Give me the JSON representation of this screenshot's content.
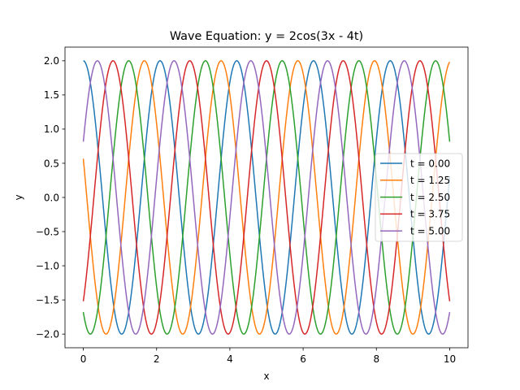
{
  "chart_data": {
    "type": "line",
    "title": "Wave Equation: y = 2cos(3x - 4t)",
    "xlabel": "x",
    "ylabel": "y",
    "xlim": [
      -0.5,
      10.5
    ],
    "ylim": [
      -2.2,
      2.2
    ],
    "x_ticks": [
      0,
      2,
      4,
      6,
      8,
      10
    ],
    "x_tick_labels": [
      "0",
      "2",
      "4",
      "6",
      "8",
      "10"
    ],
    "y_ticks": [
      -2.0,
      -1.5,
      -1.0,
      -0.5,
      0.0,
      0.5,
      1.0,
      1.5,
      2.0
    ],
    "y_tick_labels": [
      "−2.0",
      "−1.5",
      "−1.0",
      "−0.5",
      "0.0",
      "0.5",
      "1.0",
      "1.5",
      "2.0"
    ],
    "x_range": [
      0,
      10
    ],
    "formula": {
      "amplitude": 2,
      "k": 3,
      "omega": 4
    },
    "grid": false,
    "legend_position": "center-right",
    "series": [
      {
        "name": "t = 0.00",
        "t": 0.0,
        "color": "#1f77b4"
      },
      {
        "name": "t = 1.25",
        "t": 1.25,
        "color": "#ff7f0e"
      },
      {
        "name": "t = 2.50",
        "t": 2.5,
        "color": "#2ca02c"
      },
      {
        "name": "t = 3.75",
        "t": 3.75,
        "color": "#d62728"
      },
      {
        "name": "t = 5.00",
        "t": 5.0,
        "color": "#9467bd"
      }
    ]
  }
}
